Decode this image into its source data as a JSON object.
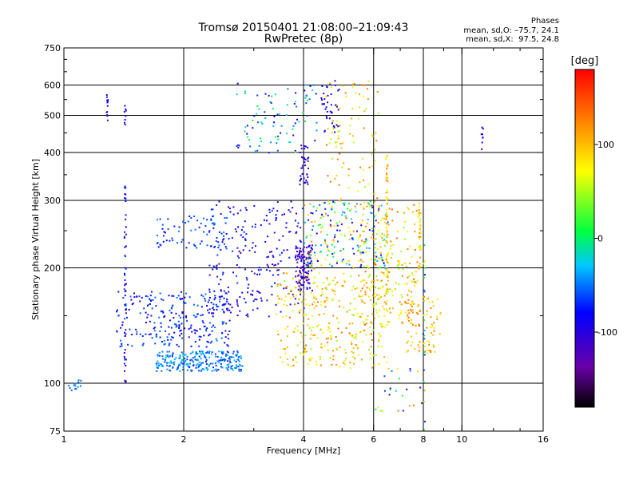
{
  "header": {
    "title_line1": "Tromsø 20150401 21:08:00–21:09:43",
    "title_line2": "RwPretec (8p)",
    "phases_title": "Phases",
    "phases_o": "mean, sd,O: –75.7, 24.1",
    "phases_x": "mean, sd,X:  97.5, 24.8"
  },
  "chart_data": {
    "type": "scatter",
    "title": "Tromsø 20150401 21:08:00–21:09:43",
    "subtitle": "RwPretec (8p)",
    "xlabel": "Frequency [MHz]",
    "ylabel": "Stationary phase Virtual Height [km]",
    "x_scale": "log",
    "y_scale": "log",
    "xlim": [
      1,
      16
    ],
    "ylim": [
      75,
      750
    ],
    "x_ticks": [
      1,
      2,
      4,
      6,
      8,
      10,
      16
    ],
    "x_minor_ticks": [
      3,
      5,
      7,
      9,
      12,
      14
    ],
    "y_ticks": [
      75,
      100,
      200,
      300,
      400,
      500,
      600,
      750
    ],
    "y_minor_ticks": [
      150,
      250,
      350,
      450,
      550,
      650,
      700
    ],
    "grid_x": [
      2,
      4,
      6,
      8,
      10
    ],
    "grid_y": [
      100,
      200,
      300,
      400,
      500,
      600
    ],
    "colorbar": {
      "label": "[deg]",
      "range": [
        -180,
        180
      ],
      "ticks": [
        100,
        0,
        -100
      ],
      "colormap": [
        "#000000",
        "#6a00a8",
        "#0000ff",
        "#00c8ff",
        "#00ff40",
        "#ffff00",
        "#ff8000",
        "#ff0000"
      ]
    },
    "clusters": [
      {
        "x": [
          1.7,
          2.8
        ],
        "y": [
          108,
          122
        ],
        "n": 260,
        "phase": [
          -70,
          -25
        ]
      },
      {
        "x": [
          1.02,
          1.1
        ],
        "y": [
          96,
          103
        ],
        "n": 14,
        "phase": [
          -60,
          -40
        ]
      },
      {
        "x": [
          1.35,
          2.6
        ],
        "y": [
          125,
          175
        ],
        "n": 260,
        "phase": [
          -100,
          -45
        ]
      },
      {
        "x": [
          1.7,
          2.6
        ],
        "y": [
          225,
          275
        ],
        "n": 70,
        "phase": [
          -80,
          -45
        ]
      },
      {
        "x": [
          2.3,
          4.0
        ],
        "y": [
          150,
          300
        ],
        "n": 240,
        "phase": [
          -120,
          -60
        ]
      },
      {
        "x": [
          3.8,
          4.2
        ],
        "y": [
          175,
          230
        ],
        "n": 120,
        "phase": [
          -130,
          -90
        ]
      },
      {
        "x": [
          3.9,
          4.1
        ],
        "y": [
          330,
          420
        ],
        "n": 35,
        "phase": [
          -120,
          -90
        ]
      },
      {
        "x": [
          2.7,
          4.3
        ],
        "y": [
          400,
          610
        ],
        "n": 90,
        "phase": [
          -110,
          20
        ]
      },
      {
        "x": [
          3.4,
          6.5
        ],
        "y": [
          110,
          195
        ],
        "n": 340,
        "phase": [
          40,
          140
        ]
      },
      {
        "x": [
          4.0,
          6.5
        ],
        "y": [
          200,
          300
        ],
        "n": 220,
        "phase": [
          -110,
          140
        ]
      },
      {
        "x": [
          5.5,
          7.8
        ],
        "y": [
          140,
          300
        ],
        "n": 200,
        "phase": [
          40,
          140
        ]
      },
      {
        "x": [
          7.2,
          8.8
        ],
        "y": [
          120,
          170
        ],
        "n": 80,
        "phase": [
          60,
          140
        ]
      },
      {
        "x": [
          4.5,
          6.2
        ],
        "y": [
          300,
          620
        ],
        "n": 90,
        "phase": [
          40,
          140
        ]
      },
      {
        "x": [
          4.4,
          4.9
        ],
        "y": [
          450,
          620
        ],
        "n": 40,
        "phase": [
          -110,
          -70
        ]
      },
      {
        "x": [
          6.0,
          8.0
        ],
        "y": [
          85,
          110
        ],
        "n": 25,
        "phase": [
          -110,
          140
        ]
      }
    ],
    "vertical_features": [
      {
        "x": 1.42,
        "y": [
          100,
          330
        ],
        "n": 55,
        "phase": [
          -120,
          -60
        ]
      },
      {
        "x": 1.28,
        "y": [
          480,
          590
        ],
        "n": 12,
        "phase": [
          -110,
          -80
        ]
      },
      {
        "x": 1.42,
        "y": [
          470,
          540
        ],
        "n": 8,
        "phase": [
          -110,
          -80
        ]
      },
      {
        "x": 6.45,
        "y": [
          170,
          400
        ],
        "n": 60,
        "phase": [
          60,
          130
        ]
      },
      {
        "x": 7.8,
        "y": [
          200,
          300
        ],
        "n": 35,
        "phase": [
          60,
          130
        ]
      },
      {
        "x": 11.2,
        "y": [
          400,
          470
        ],
        "n": 8,
        "phase": [
          -110,
          -80
        ]
      },
      {
        "x": 8.0,
        "y": [
          75,
          250
        ],
        "n": 25,
        "phase": [
          -110,
          130
        ]
      }
    ]
  }
}
